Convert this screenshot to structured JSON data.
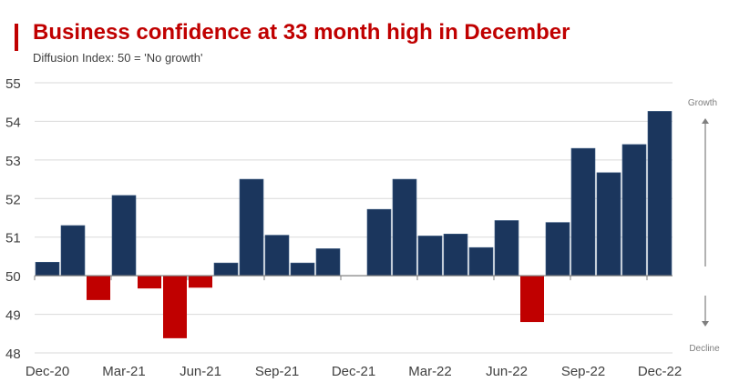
{
  "chart_data": {
    "type": "bar",
    "title": "Business confidence at 33 month high in December",
    "subtitle": "Diffusion Index: 50 = 'No growth'",
    "baseline": 50,
    "ylim": [
      48,
      55
    ],
    "yticks": [
      48,
      49,
      50,
      51,
      52,
      53,
      54,
      55
    ],
    "grid": true,
    "categories": [
      "Dec-20",
      "Jan-21",
      "Feb-21",
      "Mar-21",
      "Apr-21",
      "May-21",
      "Jun-21",
      "Jul-21",
      "Aug-21",
      "Sep-21",
      "Oct-21",
      "Nov-21",
      "Dec-21",
      "Jan-22",
      "Feb-22",
      "Mar-22",
      "Apr-22",
      "May-22",
      "Jun-22",
      "Jul-22",
      "Aug-22",
      "Sep-22",
      "Oct-22",
      "Nov-22",
      "Dec-22"
    ],
    "xtick_labels": [
      "Dec-20",
      "Mar-21",
      "Jun-21",
      "Sep-21",
      "Dec-21",
      "Mar-22",
      "Jun-22",
      "Sep-22",
      "Dec-22"
    ],
    "values": [
      50.35,
      51.3,
      49.37,
      52.08,
      49.67,
      48.38,
      49.69,
      50.33,
      52.5,
      51.05,
      50.33,
      50.7,
      50.0,
      51.72,
      52.5,
      51.03,
      51.08,
      50.73,
      51.43,
      48.8,
      51.38,
      53.3,
      52.67,
      53.4,
      54.26
    ],
    "colors": {
      "above": "#1b365d",
      "below": "#c00000"
    },
    "annotations": {
      "growth": "Growth",
      "decline": "Decline"
    }
  }
}
